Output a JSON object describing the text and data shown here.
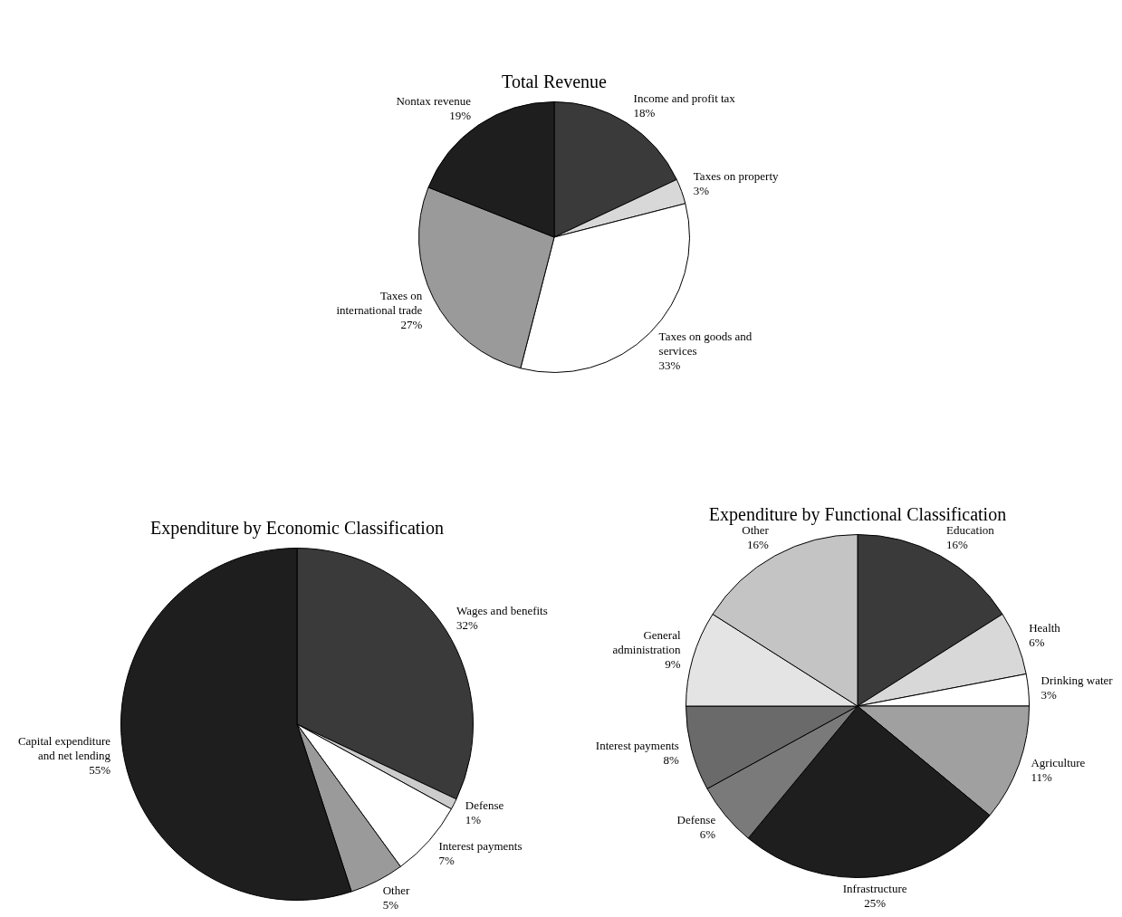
{
  "chart_data": [
    {
      "type": "pie",
      "title": "Total Revenue",
      "categories": [
        "Income and profit tax",
        "Taxes on property",
        "Taxes on goods and services",
        "Taxes on international trade",
        "Nontax revenue"
      ],
      "values": [
        18,
        3,
        33,
        27,
        19
      ],
      "value_labels": [
        "18%",
        "3%",
        "33%",
        "27%",
        "19%"
      ],
      "colors": [
        "#3a3a3a",
        "#d8d8d8",
        "#ffffff",
        "#9a9a9a",
        "#1e1e1e"
      ]
    },
    {
      "type": "pie",
      "title": "Expenditure by Economic Classification",
      "categories": [
        "Wages and benefits",
        "Defense",
        "Interest payments",
        "Other",
        "Capital expenditure and net lending"
      ],
      "values": [
        32,
        1,
        7,
        5,
        55
      ],
      "value_labels": [
        "32%",
        "1%",
        "7%",
        "5%",
        "55%"
      ],
      "colors": [
        "#3a3a3a",
        "#cccccc",
        "#ffffff",
        "#9a9a9a",
        "#1e1e1e"
      ]
    },
    {
      "type": "pie",
      "title": "Expenditure by Functional Classification",
      "categories": [
        "Education",
        "Health",
        "Drinking water",
        "Agriculture",
        "Infrastructure",
        "Defense",
        "Interest payments",
        "General administration",
        "Other"
      ],
      "values": [
        16,
        6,
        3,
        11,
        25,
        6,
        8,
        9,
        16
      ],
      "value_labels": [
        "16%",
        "6%",
        "3%",
        "11%",
        "25%",
        "6%",
        "8%",
        "9%",
        "16%"
      ],
      "colors": [
        "#3a3a3a",
        "#d8d8d8",
        "#ffffff",
        "#a0a0a0",
        "#1e1e1e",
        "#7a7a7a",
        "#6a6a6a",
        "#e4e4e4",
        "#c4c4c4"
      ]
    }
  ]
}
